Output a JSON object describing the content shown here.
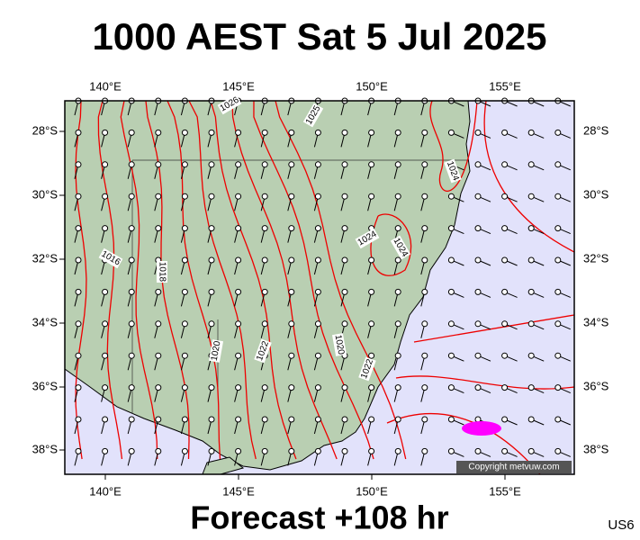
{
  "title": "1000 AEST Sat 5 Jul 2025",
  "lon_labels": [
    "140°E",
    "145°E",
    "150°E",
    "155°E"
  ],
  "lat_labels": [
    "28°S",
    "30°S",
    "32°S",
    "34°S",
    "36°S",
    "38°S"
  ],
  "isobar_labels": [
    "1026",
    "1025",
    "1024",
    "1024",
    "1024",
    "1016",
    "1018",
    "1020",
    "1022",
    "1022",
    "1020"
  ],
  "copyright": "Copyright metvuw.com",
  "footer": "Forecast +108 hr",
  "code": "US6"
}
